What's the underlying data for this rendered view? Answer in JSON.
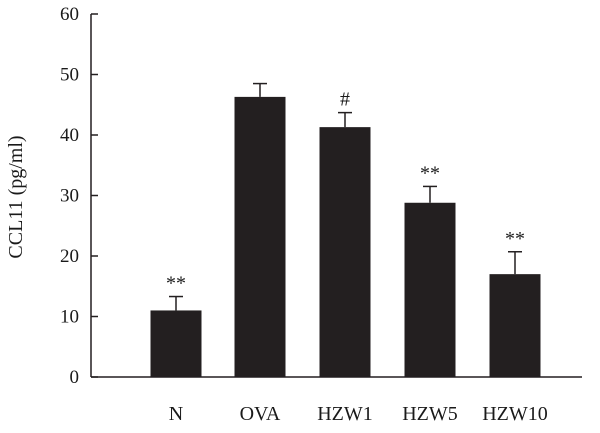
{
  "chart_data": {
    "type": "bar",
    "categories": [
      "N",
      "OVA",
      "HZW1",
      "HZW5",
      "HZW10"
    ],
    "values": [
      11,
      46.3,
      41.3,
      28.8,
      17
    ],
    "errors": [
      2.3,
      2.2,
      2.4,
      2.7,
      3.7
    ],
    "annotations": [
      "**",
      "",
      "#",
      "**",
      "**"
    ],
    "ylabel": "CCL11 (pg/ml)",
    "ylim": [
      0,
      60
    ],
    "yticks": [
      0,
      10,
      20,
      30,
      40,
      50,
      60
    ],
    "bar_color": "#231f20",
    "grid": false
  }
}
